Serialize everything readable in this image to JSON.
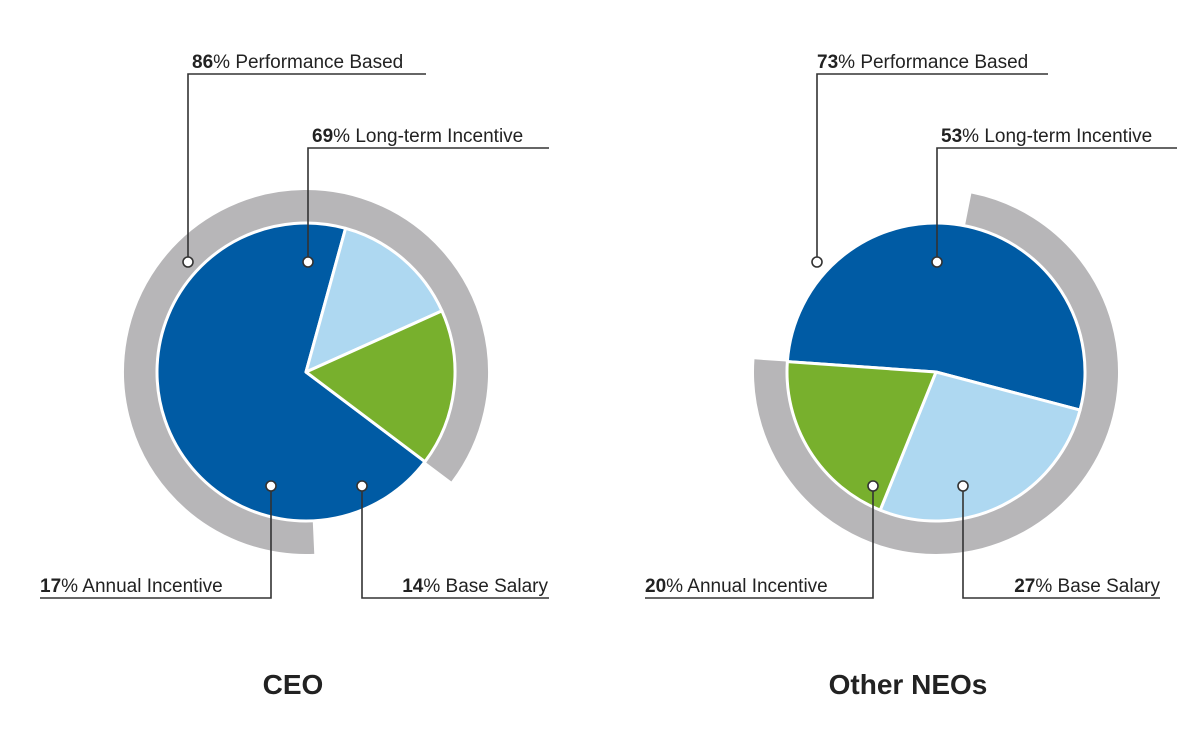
{
  "colors": {
    "long_term_incentive": "#005ba4",
    "annual_incentive": "#78b02d",
    "base_salary": "#aed8f1",
    "performance_ring": "#b7b6b8",
    "leader_line": "#333333",
    "separator": "#ffffff"
  },
  "chart_data": [
    {
      "type": "pie",
      "title": "CEO",
      "ring": {
        "label": "Performance Based",
        "value": 86,
        "pct_text": "86",
        "suffix": "% Performance Based"
      },
      "slices": [
        {
          "key": "long_term_incentive",
          "label": "Long-term Incentive",
          "value": 69,
          "pct_text": "69",
          "suffix": "% Long-term Incentive"
        },
        {
          "key": "base_salary",
          "label": "Base Salary",
          "value": 14,
          "pct_text": "14",
          "suffix": "% Base Salary"
        },
        {
          "key": "annual_incentive",
          "label": "Annual Incentive",
          "value": 17,
          "pct_text": "17",
          "suffix": "% Annual Incentive"
        }
      ]
    },
    {
      "type": "pie",
      "title": "Other NEOs",
      "ring": {
        "label": "Performance Based",
        "value": 73,
        "pct_text": "73",
        "suffix": "% Performance Based"
      },
      "slices": [
        {
          "key": "long_term_incentive",
          "label": "Long-term Incentive",
          "value": 53,
          "pct_text": "53",
          "suffix": "% Long-term Incentive"
        },
        {
          "key": "base_salary",
          "label": "Base Salary",
          "value": 27,
          "pct_text": "27",
          "suffix": "% Base Salary"
        },
        {
          "key": "annual_incentive",
          "label": "Annual Incentive",
          "value": 20,
          "pct_text": "20",
          "suffix": "% Annual Incentive"
        }
      ]
    }
  ]
}
